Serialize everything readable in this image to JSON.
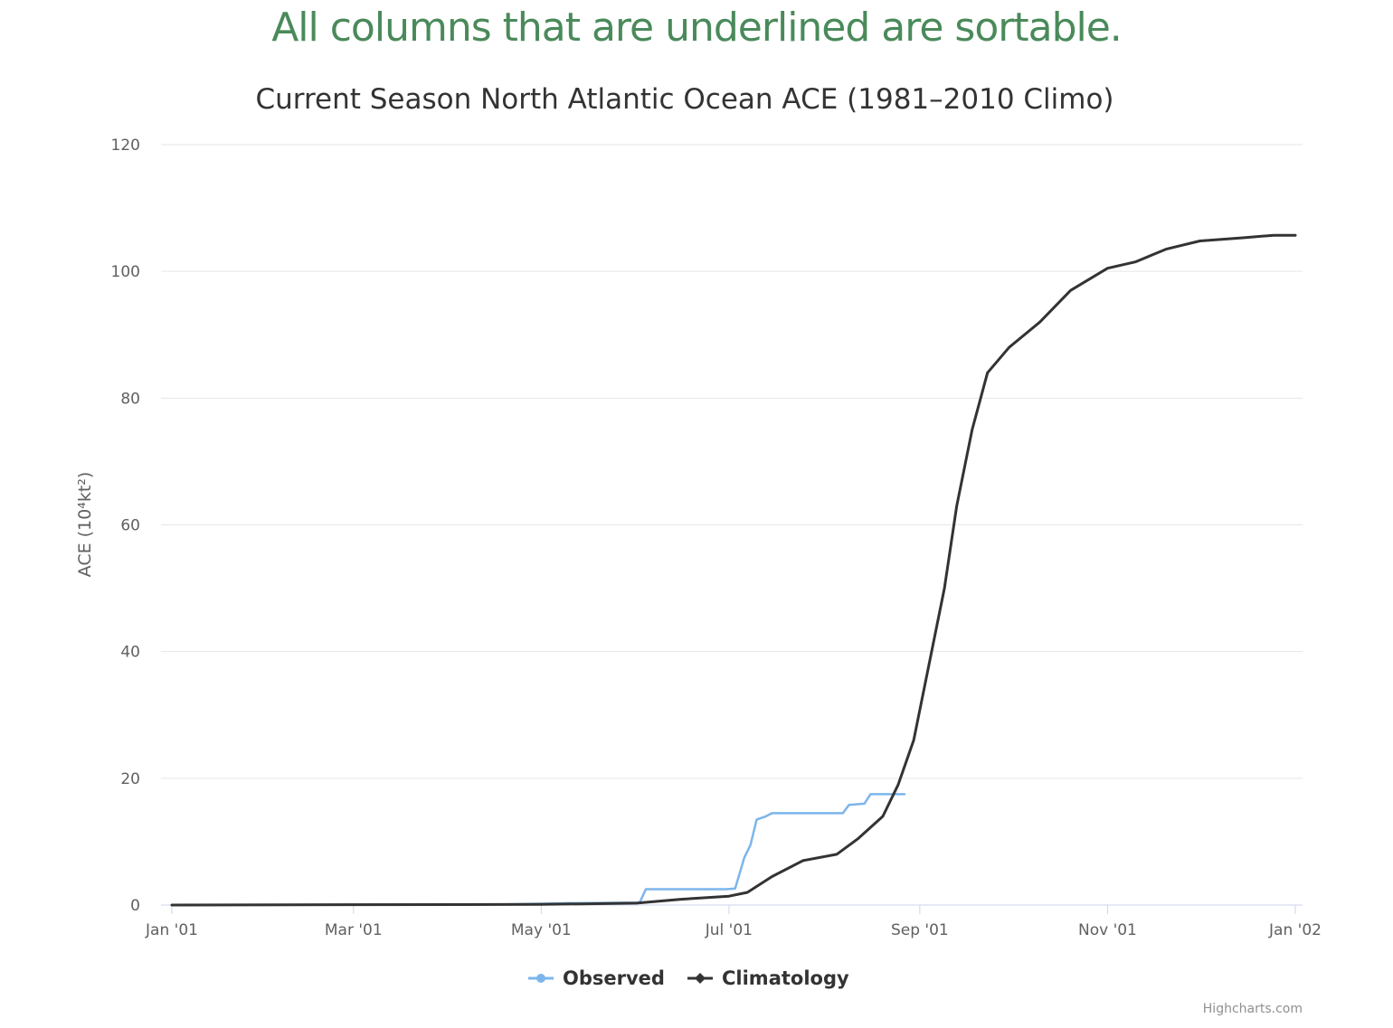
{
  "banner": {
    "text": "All columns that are underlined are sortable."
  },
  "chart_data": {
    "type": "line",
    "title": "Current Season North Atlantic Ocean ACE (1981–2010 Climo)",
    "ylabel": "ACE (10⁴kt²)",
    "xlabel": "",
    "xlim": [
      "2001-01-01",
      "2002-01-01"
    ],
    "ylim": [
      0,
      120
    ],
    "y_ticks": [
      0,
      20,
      40,
      60,
      80,
      100,
      120
    ],
    "x_ticks": [
      {
        "date": "2001-01-01",
        "label": "Jan '01"
      },
      {
        "date": "2001-03-01",
        "label": "Mar '01"
      },
      {
        "date": "2001-05-01",
        "label": "May '01"
      },
      {
        "date": "2001-07-01",
        "label": "Jul '01"
      },
      {
        "date": "2001-09-01",
        "label": "Sep '01"
      },
      {
        "date": "2001-11-01",
        "label": "Nov '01"
      },
      {
        "date": "2002-01-01",
        "label": "Jan '02"
      }
    ],
    "grid": true,
    "legend_position": "bottom-center",
    "series": [
      {
        "name": "Observed",
        "color": "#7cb5ec",
        "points": [
          [
            "2001-01-01",
            0
          ],
          [
            "2001-04-20",
            0.1
          ],
          [
            "2001-05-10",
            0.3
          ],
          [
            "2001-06-02",
            0.4
          ],
          [
            "2001-06-04",
            2.5
          ],
          [
            "2001-06-30",
            2.5
          ],
          [
            "2001-07-03",
            2.6
          ],
          [
            "2001-07-06",
            7.5
          ],
          [
            "2001-07-08",
            9.5
          ],
          [
            "2001-07-10",
            13.5
          ],
          [
            "2001-07-13",
            14.0
          ],
          [
            "2001-07-15",
            14.5
          ],
          [
            "2001-08-07",
            14.5
          ],
          [
            "2001-08-09",
            15.8
          ],
          [
            "2001-08-14",
            16.0
          ],
          [
            "2001-08-16",
            17.5
          ],
          [
            "2001-08-27",
            17.5
          ]
        ]
      },
      {
        "name": "Climatology",
        "color": "#333333",
        "points": [
          [
            "2001-01-01",
            0
          ],
          [
            "2001-05-01",
            0.1
          ],
          [
            "2001-06-01",
            0.3
          ],
          [
            "2001-06-15",
            0.9
          ],
          [
            "2001-07-01",
            1.4
          ],
          [
            "2001-07-07",
            2.0
          ],
          [
            "2001-07-15",
            4.5
          ],
          [
            "2001-07-25",
            7.0
          ],
          [
            "2001-08-05",
            8.0
          ],
          [
            "2001-08-12",
            10.5
          ],
          [
            "2001-08-20",
            14.0
          ],
          [
            "2001-08-25",
            19.0
          ],
          [
            "2001-08-30",
            26.0
          ],
          [
            "2001-09-04",
            38.0
          ],
          [
            "2001-09-09",
            50.0
          ],
          [
            "2001-09-13",
            63.0
          ],
          [
            "2001-09-18",
            75.0
          ],
          [
            "2001-09-23",
            84.0
          ],
          [
            "2001-09-30",
            88.0
          ],
          [
            "2001-10-10",
            92.0
          ],
          [
            "2001-10-20",
            97.0
          ],
          [
            "2001-11-01",
            100.5
          ],
          [
            "2001-11-10",
            101.5
          ],
          [
            "2001-11-20",
            103.5
          ],
          [
            "2001-12-01",
            104.8
          ],
          [
            "2001-12-15",
            105.3
          ],
          [
            "2001-12-25",
            105.7
          ],
          [
            "2002-01-01",
            105.7
          ]
        ]
      }
    ]
  },
  "credit": "Highcharts.com"
}
